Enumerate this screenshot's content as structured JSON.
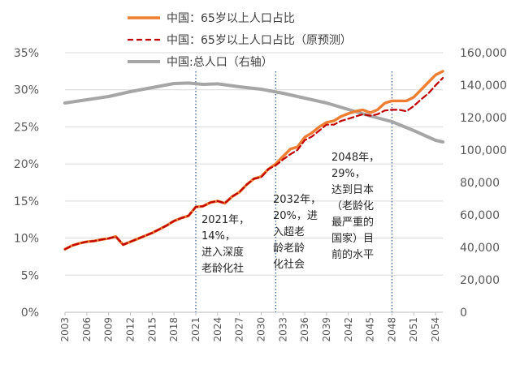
{
  "chart_data": {
    "type": "line",
    "title": "",
    "xlabel": "",
    "ylabel_left": "",
    "ylabel_right": "",
    "ylim_left": [
      0,
      35
    ],
    "ylim_right": [
      0,
      160000
    ],
    "xlim": [
      2003,
      2055
    ],
    "left_ticks": [
      "0%",
      "5%",
      "10%",
      "15%",
      "20%",
      "25%",
      "30%",
      "35%"
    ],
    "right_ticks": [
      "0",
      "20,000",
      "40,000",
      "60,000",
      "80,000",
      "100,000",
      "120,000",
      "140,000",
      "160,000"
    ],
    "x_ticks": [
      "2003",
      "2006",
      "2009",
      "2012",
      "2015",
      "2018",
      "2021",
      "2024",
      "2027",
      "2030",
      "2033",
      "2036",
      "2039",
      "2042",
      "2045",
      "2048",
      "2051",
      "2054"
    ],
    "legend_position": "top-left",
    "series": [
      {
        "name": "中国：65岁以上人口占比",
        "axis": "left",
        "color": "#ED7D31",
        "style": "solid",
        "x": [
          2003,
          2004,
          2005,
          2006,
          2007,
          2008,
          2009,
          2010,
          2011,
          2012,
          2013,
          2014,
          2015,
          2016,
          2017,
          2018,
          2019,
          2020,
          2021,
          2022,
          2023,
          2024,
          2025,
          2026,
          2027,
          2028,
          2029,
          2030,
          2031,
          2032,
          2033,
          2034,
          2035,
          2036,
          2037,
          2038,
          2039,
          2040,
          2041,
          2042,
          2043,
          2044,
          2045,
          2046,
          2047,
          2048,
          2049,
          2050,
          2051,
          2052,
          2053,
          2054,
          2055
        ],
        "values": [
          8.5,
          9.0,
          9.3,
          9.5,
          9.6,
          9.8,
          9.95,
          10.2,
          9.1,
          9.5,
          9.9,
          10.3,
          10.7,
          11.2,
          11.7,
          12.3,
          12.7,
          13.0,
          14.2,
          14.3,
          14.8,
          15.0,
          14.7,
          15.6,
          16.2,
          17.2,
          18.0,
          18.3,
          19.3,
          20.0,
          21.0,
          22.0,
          22.3,
          23.6,
          24.2,
          25.0,
          25.6,
          25.8,
          26.4,
          26.8,
          27.1,
          27.3,
          26.9,
          27.3,
          28.2,
          28.5,
          28.5,
          28.5,
          29.0,
          30.0,
          31.0,
          32.0,
          32.5
        ]
      },
      {
        "name": "中国：65岁以上人口占比（原预测）",
        "axis": "left",
        "color": "#C00000",
        "style": "dashed",
        "x": [
          2003,
          2004,
          2005,
          2006,
          2007,
          2008,
          2009,
          2010,
          2011,
          2012,
          2013,
          2014,
          2015,
          2016,
          2017,
          2018,
          2019,
          2020,
          2021,
          2022,
          2023,
          2024,
          2025,
          2026,
          2027,
          2028,
          2029,
          2030,
          2031,
          2032,
          2033,
          2034,
          2035,
          2036,
          2037,
          2038,
          2039,
          2040,
          2041,
          2042,
          2043,
          2044,
          2045,
          2046,
          2047,
          2048,
          2049,
          2050,
          2051,
          2052,
          2053,
          2054,
          2055
        ],
        "values": [
          8.5,
          9.0,
          9.3,
          9.5,
          9.6,
          9.8,
          9.95,
          10.2,
          9.1,
          9.5,
          9.9,
          10.3,
          10.7,
          11.2,
          11.7,
          12.3,
          12.7,
          13.0,
          14.2,
          14.3,
          14.8,
          15.0,
          14.7,
          15.6,
          16.2,
          17.2,
          18.0,
          18.2,
          19.3,
          19.8,
          20.6,
          21.3,
          21.9,
          23.2,
          23.7,
          24.5,
          25.3,
          25.3,
          25.8,
          26.1,
          26.4,
          26.7,
          26.5,
          26.7,
          27.2,
          27.3,
          27.3,
          27.1,
          27.8,
          28.7,
          29.5,
          30.6,
          31.6
        ]
      },
      {
        "name": "中国:总人口（右轴）",
        "axis": "right",
        "color": "#A6A6A6",
        "style": "solid",
        "x": [
          2003,
          2006,
          2009,
          2012,
          2015,
          2018,
          2020,
          2022,
          2024,
          2027,
          2030,
          2033,
          2036,
          2039,
          2042,
          2045,
          2048,
          2051,
          2054,
          2055
        ],
        "values": [
          129000,
          131000,
          133000,
          136000,
          138500,
          141000,
          141300,
          140500,
          140800,
          139000,
          137500,
          135000,
          132000,
          129000,
          125000,
          121000,
          117500,
          112000,
          106000,
          105000
        ]
      }
    ],
    "annotations": [
      {
        "x": 2021,
        "lines": [
          "2021年，",
          "14%，",
          "进入深度",
          "老龄化社"
        ]
      },
      {
        "x": 2032,
        "lines": [
          "2032年，",
          "20%，进",
          "入超老",
          "龄老龄",
          "化社会"
        ]
      },
      {
        "x": 2048,
        "lines": [
          "2048年，",
          "29%，",
          "达到日本",
          "（老龄化",
          "最严重的",
          "国家）目",
          "前的水平"
        ]
      }
    ]
  }
}
